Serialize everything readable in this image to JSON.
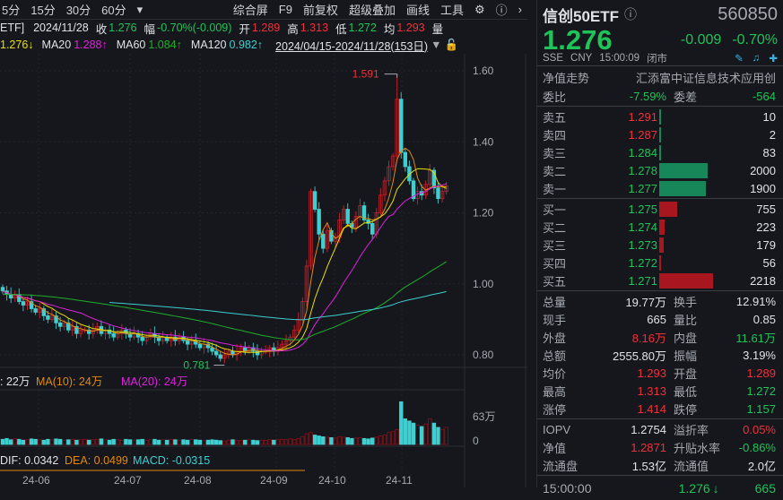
{
  "toolbar": {
    "periods": [
      "5分",
      "15分",
      "30分",
      "60分"
    ],
    "menu": [
      "综合屏",
      "F9",
      "前复权",
      "超级叠加",
      "画线",
      "工具"
    ]
  },
  "info": {
    "name_tail": "ETF]",
    "date": "2024/11/28",
    "close_label": "收",
    "close": "1.276",
    "chg_label": "幅",
    "chg": "-0.70%(-0.009)",
    "open_label": "开",
    "open": "1.289",
    "high_label": "高",
    "high": "1.313",
    "low_label": "低",
    "low": "1.272",
    "avg_label": "均",
    "avg": "1.293",
    "vol_label": "量"
  },
  "ma": {
    "ma10": "1.276↓",
    "ma20_label": "MA20",
    "ma20": "1.288↑",
    "ma60_label": "MA60",
    "ma60": "1.084↑",
    "ma120_label": "MA120",
    "ma120": "0.982↑",
    "range": "2024/04/15-2024/11/28(153日)"
  },
  "chart_data": {
    "type": "candlestick",
    "y_ticks": [
      "1.60",
      "1.40",
      "1.20",
      "1.00",
      "0.80"
    ],
    "ylim": [
      0.78,
      1.62
    ],
    "x_ticks": [
      "24-06",
      "24-07",
      "24-08",
      "24-09",
      "24-10",
      "24-11"
    ],
    "closes": [
      0.98,
      0.97,
      0.96,
      0.97,
      0.95,
      0.94,
      0.95,
      0.93,
      0.92,
      0.93,
      0.91,
      0.9,
      0.91,
      0.89,
      0.88,
      0.89,
      0.87,
      0.88,
      0.86,
      0.87,
      0.87,
      0.86,
      0.87,
      0.88,
      0.86,
      0.87,
      0.86,
      0.85,
      0.86,
      0.87,
      0.86,
      0.85,
      0.86,
      0.85,
      0.84,
      0.85,
      0.86,
      0.85,
      0.84,
      0.85,
      0.84,
      0.85,
      0.84,
      0.85,
      0.84,
      0.83,
      0.84,
      0.83,
      0.82,
      0.83,
      0.82,
      0.81,
      0.8,
      0.79,
      0.8,
      0.81,
      0.8,
      0.81,
      0.82,
      0.81,
      0.82,
      0.81,
      0.8,
      0.81,
      0.81,
      0.82,
      0.81,
      0.82,
      0.83,
      0.84,
      0.85,
      0.87,
      0.9,
      0.95,
      1.05,
      1.26,
      1.21,
      1.14,
      1.1,
      1.15,
      1.12,
      1.13,
      1.18,
      1.21,
      1.17,
      1.16,
      1.19,
      1.22,
      1.18,
      1.17,
      1.14,
      1.2,
      1.25,
      1.29,
      1.33,
      1.36,
      1.52,
      1.37,
      1.33,
      1.29,
      1.24,
      1.26,
      1.25,
      1.28,
      1.32,
      1.27,
      1.24,
      1.26,
      1.276
    ],
    "high_annotation": "1.591",
    "low_annotation": "0.781",
    "volume": {
      "legend_ma5": ": 22万",
      "legend_ma10": "MA(10): 24万",
      "legend_ma20": "MA(20): 24万",
      "y_ticks": [
        "63万",
        "0"
      ],
      "values": [
        12,
        14,
        11,
        13,
        12,
        10,
        11,
        13,
        12,
        11,
        10,
        12,
        11,
        13,
        12,
        10,
        11,
        12,
        10,
        11,
        12,
        10,
        11,
        12,
        13,
        11,
        10,
        12,
        11,
        10,
        12,
        11,
        10,
        11,
        12,
        10,
        11,
        12,
        10,
        11,
        10,
        12,
        11,
        10,
        11,
        10,
        12,
        11,
        10,
        9,
        10,
        11,
        10,
        9,
        8,
        10,
        11,
        10,
        9,
        10,
        11,
        10,
        9,
        10,
        10,
        11,
        10,
        11,
        12,
        11,
        13,
        12,
        14,
        18,
        25,
        28,
        22,
        20,
        18,
        17,
        16,
        15,
        18,
        17,
        16,
        14,
        15,
        16,
        14,
        13,
        15,
        17,
        20,
        22,
        28,
        30,
        35,
        100,
        60,
        55,
        50,
        45,
        42,
        48,
        60,
        50,
        40,
        35,
        40
      ]
    },
    "macd": {
      "dif": "DIF: 0.0342",
      "dea": "DEA: 0.0499",
      "macd": "MACD: -0.0315"
    }
  },
  "panel": {
    "name": "信创50ETF",
    "code": "560850",
    "price": "1.276",
    "change": "-0.009",
    "change_pct": "-0.70%",
    "exchange": "SSE",
    "currency": "CNY",
    "time": "15:00:09",
    "status": "闭市",
    "nav_trend": "净值走势",
    "full_name": "汇添富中证信息技术应用创",
    "weibi_label": "委比",
    "weibi": "-7.59%",
    "weicha_label": "委差",
    "weicha": "-564",
    "asks": [
      {
        "label": "卖五",
        "price": "1.291",
        "vol": "10",
        "pc": "red",
        "frac": 0.005
      },
      {
        "label": "卖四",
        "price": "1.287",
        "vol": "2",
        "pc": "red",
        "frac": 0.001
      },
      {
        "label": "卖三",
        "price": "1.284",
        "vol": "83",
        "pc": "green",
        "frac": 0.04
      },
      {
        "label": "卖二",
        "price": "1.278",
        "vol": "2000",
        "pc": "green",
        "frac": 0.9
      },
      {
        "label": "卖一",
        "price": "1.277",
        "vol": "1900",
        "pc": "green",
        "frac": 0.86
      }
    ],
    "bids": [
      {
        "label": "买一",
        "price": "1.275",
        "vol": "755",
        "pc": "green",
        "frac": 0.34
      },
      {
        "label": "买二",
        "price": "1.274",
        "vol": "223",
        "pc": "green",
        "frac": 0.1
      },
      {
        "label": "买三",
        "price": "1.273",
        "vol": "179",
        "pc": "green",
        "frac": 0.08
      },
      {
        "label": "买四",
        "price": "1.272",
        "vol": "56",
        "pc": "green",
        "frac": 0.025
      },
      {
        "label": "买五",
        "price": "1.271",
        "vol": "2218",
        "pc": "green",
        "frac": 1.0
      }
    ],
    "stats": [
      [
        "总量",
        "19.77万",
        "white",
        "换手",
        "12.91%",
        "white"
      ],
      [
        "现手",
        "665",
        "white",
        "量比",
        "0.85",
        "white"
      ],
      [
        "外盘",
        "8.16万",
        "red",
        "内盘",
        "11.61万",
        "green"
      ],
      [
        "总额",
        "2555.80万",
        "white",
        "振幅",
        "3.19%",
        "white"
      ],
      [
        "均价",
        "1.293",
        "red",
        "开盘",
        "1.289",
        "red"
      ],
      [
        "最高",
        "1.313",
        "red",
        "最低",
        "1.272",
        "green"
      ],
      [
        "涨停",
        "1.414",
        "red",
        "跌停",
        "1.157",
        "green"
      ]
    ],
    "stats2": [
      [
        "IOPV",
        "1.2754",
        "white",
        "溢折率",
        "0.05%",
        "red"
      ],
      [
        "净值",
        "1.2871",
        "red",
        "升贴水率",
        "-0.86%",
        "green"
      ],
      [
        "流通盘",
        "1.53亿",
        "white",
        "流通值",
        "2.0亿",
        "white"
      ]
    ],
    "tick": {
      "time": "15:00:00",
      "price": "1.276",
      "vol": "665"
    }
  },
  "colors": {
    "up": "#f0303a",
    "down": "#3ecfd0",
    "green": "#1fc35a",
    "ask_bar": "#17875a",
    "bid_bar": "#a8161f"
  }
}
